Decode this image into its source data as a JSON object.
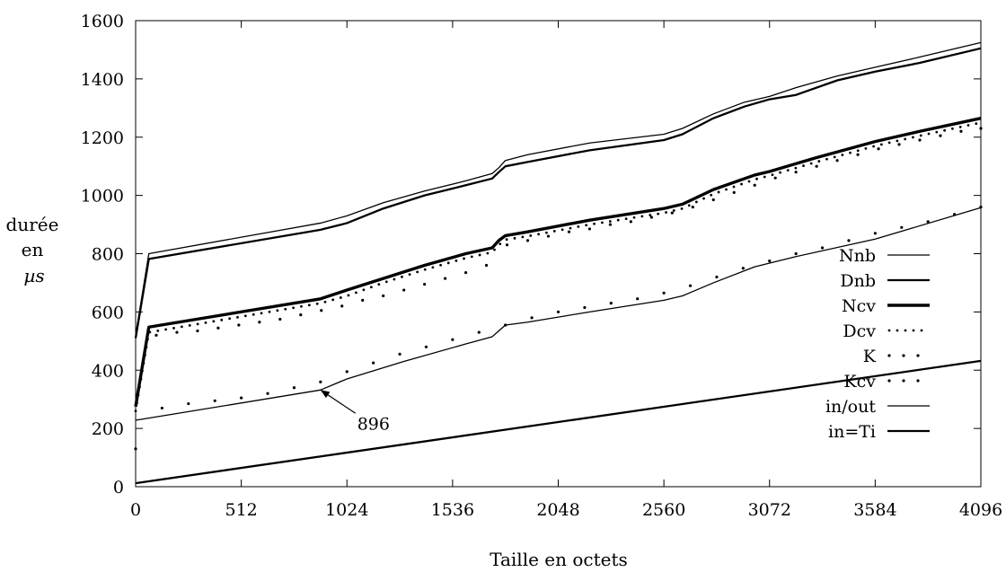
{
  "chart_data": {
    "type": "line",
    "title": "",
    "xlabel": "Taille en octets",
    "ylabel_lines": [
      "durée",
      "en",
      "µs"
    ],
    "xlim": [
      0,
      4096
    ],
    "ylim": [
      0,
      1600
    ],
    "xticks": [
      0,
      512,
      1024,
      1536,
      2048,
      2560,
      3072,
      3584,
      4096
    ],
    "yticks": [
      0,
      200,
      400,
      600,
      800,
      1000,
      1200,
      1400,
      1600
    ],
    "grid": false,
    "legend_position": "right",
    "annotation": {
      "text": "896",
      "point": [
        896,
        332
      ],
      "label_at": [
        1100,
        215
      ]
    },
    "series": [
      {
        "name": "Nnb",
        "style": "thin-line",
        "x": [
          0,
          64,
          896,
          1024,
          1200,
          1400,
          1600,
          1728,
          1760,
          1792,
          1900,
          2200,
          2560,
          2650,
          2800,
          2950,
          3072,
          3200,
          3400,
          3584,
          3800,
          4096
        ],
        "y": [
          520,
          800,
          905,
          930,
          975,
          1015,
          1050,
          1075,
          1095,
          1120,
          1140,
          1180,
          1210,
          1230,
          1280,
          1320,
          1340,
          1370,
          1410,
          1440,
          1475,
          1525
        ]
      },
      {
        "name": "Dnb",
        "style": "medium-line",
        "x": [
          0,
          64,
          896,
          1024,
          1200,
          1400,
          1600,
          1728,
          1760,
          1792,
          1900,
          2200,
          2560,
          2650,
          2800,
          2950,
          3072,
          3200,
          3400,
          3584,
          3800,
          4096
        ],
        "y": [
          510,
          782,
          882,
          905,
          955,
          1000,
          1035,
          1058,
          1080,
          1100,
          1115,
          1155,
          1190,
          1210,
          1265,
          1305,
          1330,
          1345,
          1395,
          1425,
          1455,
          1505
        ]
      },
      {
        "name": "Ncv",
        "style": "thick-line",
        "x": [
          0,
          64,
          896,
          1024,
          1200,
          1400,
          1600,
          1728,
          1760,
          1792,
          1900,
          2200,
          2560,
          2650,
          2800,
          3000,
          3072,
          3300,
          3584,
          3800,
          4096
        ],
        "y": [
          275,
          548,
          645,
          675,
          715,
          760,
          800,
          820,
          845,
          862,
          875,
          915,
          955,
          970,
          1020,
          1070,
          1082,
          1130,
          1185,
          1220,
          1265
        ]
      },
      {
        "name": "Dcv",
        "style": "dense-dots",
        "x": [
          0,
          64,
          896,
          1024,
          1200,
          1400,
          1600,
          1728,
          1760,
          1792,
          1900,
          2200,
          2560,
          2650,
          2800,
          3000,
          3072,
          3300,
          3584,
          3800,
          4096
        ],
        "y": [
          260,
          530,
          630,
          655,
          700,
          745,
          785,
          805,
          830,
          848,
          860,
          900,
          940,
          955,
          1005,
          1055,
          1068,
          1115,
          1170,
          1205,
          1250
        ]
      },
      {
        "name": "K",
        "style": "sparse-dots",
        "x": [
          100,
          200,
          300,
          400,
          500,
          600,
          700,
          800,
          900,
          1000,
          1100,
          1200,
          1300,
          1400,
          1500,
          1600,
          1700,
          1800,
          1900,
          2000,
          2100,
          2200,
          2300,
          2400,
          2500,
          2600,
          2700,
          2800,
          2900,
          3000,
          3100,
          3200,
          3300,
          3400,
          3500,
          3600,
          3700,
          3800,
          3900,
          4000,
          4096
        ],
        "y": [
          520,
          530,
          535,
          545,
          555,
          565,
          575,
          590,
          605,
          620,
          640,
          655,
          675,
          695,
          715,
          735,
          760,
          830,
          845,
          860,
          875,
          885,
          900,
          910,
          925,
          940,
          960,
          985,
          1010,
          1035,
          1060,
          1080,
          1100,
          1120,
          1140,
          1160,
          1175,
          1190,
          1205,
          1220,
          1230
        ]
      },
      {
        "name": "Kcv",
        "style": "sparse-dots",
        "x": [
          0,
          128,
          256,
          384,
          512,
          640,
          768,
          896,
          1024,
          1152,
          1280,
          1408,
          1536,
          1664,
          1792,
          1920,
          2048,
          2176,
          2304,
          2432,
          2560,
          2688,
          2816,
          2944,
          3072,
          3200,
          3328,
          3456,
          3584,
          3712,
          3840,
          3968,
          4096
        ],
        "y": [
          130,
          270,
          285,
          295,
          305,
          320,
          340,
          360,
          395,
          425,
          455,
          480,
          505,
          530,
          555,
          580,
          600,
          615,
          630,
          645,
          665,
          690,
          720,
          750,
          775,
          800,
          820,
          845,
          870,
          890,
          910,
          935,
          960
        ]
      },
      {
        "name": "in/out",
        "style": "thin-line",
        "x": [
          0,
          896,
          1024,
          1300,
          1600,
          1728,
          1760,
          1792,
          1900,
          2200,
          2560,
          2650,
          2800,
          3000,
          3200,
          3584,
          4096
        ],
        "y": [
          228,
          332,
          370,
          430,
          490,
          515,
          535,
          555,
          565,
          600,
          640,
          655,
          700,
          755,
          790,
          850,
          958
        ]
      },
      {
        "name": "in=Ti",
        "style": "medium-line",
        "x": [
          0,
          4096
        ],
        "y": [
          12,
          432
        ]
      }
    ]
  }
}
